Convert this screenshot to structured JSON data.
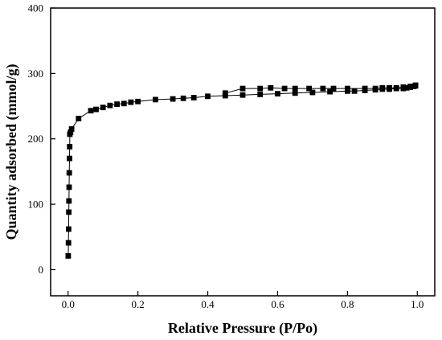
{
  "chart_data": {
    "type": "scatter",
    "title": "",
    "xlabel": "Relative Pressure (P/Po)",
    "ylabel": "Quantity adsorbed (mmol/g)",
    "xlim": [
      -0.05,
      1.05
    ],
    "ylim": [
      -40,
      400
    ],
    "xticks": [
      0.0,
      0.2,
      0.4,
      0.6,
      0.8,
      1.0
    ],
    "xtick_labels": [
      "0.0",
      "0.2",
      "0.4",
      "0.6",
      "0.8",
      "1.0"
    ],
    "yticks": [
      0,
      100,
      200,
      300,
      400
    ],
    "ytick_labels": [
      "0",
      "100",
      "200",
      "300",
      "400"
    ],
    "grid": false,
    "marker": "square",
    "color": "#000000",
    "series": [
      {
        "name": "",
        "role": "adsorption",
        "x": [
          0.0005,
          0.001,
          0.0015,
          0.002,
          0.0025,
          0.003,
          0.0035,
          0.004,
          0.0045,
          0.005,
          0.007,
          0.01,
          0.03,
          0.065,
          0.08,
          0.1,
          0.12,
          0.14,
          0.16,
          0.18,
          0.2,
          0.25,
          0.3,
          0.33,
          0.36,
          0.4,
          0.45,
          0.5,
          0.55,
          0.6,
          0.65,
          0.7,
          0.75,
          0.8,
          0.82,
          0.85,
          0.88,
          0.9,
          0.92,
          0.94,
          0.96,
          0.97,
          0.98,
          0.99,
          0.995
        ],
        "y": [
          21,
          41,
          62,
          88,
          105,
          126,
          148,
          170,
          188,
          207,
          210,
          215,
          231,
          243,
          245,
          248,
          251,
          253,
          254,
          256,
          257,
          260,
          261,
          262,
          263,
          265,
          266,
          267,
          268,
          269,
          270,
          271,
          272,
          273,
          273,
          274,
          275,
          276,
          276,
          277,
          277,
          278,
          279,
          280,
          281
        ]
      },
      {
        "name": "",
        "role": "desorption",
        "x": [
          0.995,
          0.98,
          0.96,
          0.94,
          0.92,
          0.9,
          0.88,
          0.85,
          0.8,
          0.76,
          0.73,
          0.69,
          0.65,
          0.62,
          0.58,
          0.55,
          0.5,
          0.45
        ],
        "y": [
          282,
          280,
          279,
          278,
          278,
          278,
          277,
          277,
          277,
          277,
          277,
          277,
          277,
          277,
          278,
          277,
          277,
          270
        ]
      }
    ]
  }
}
